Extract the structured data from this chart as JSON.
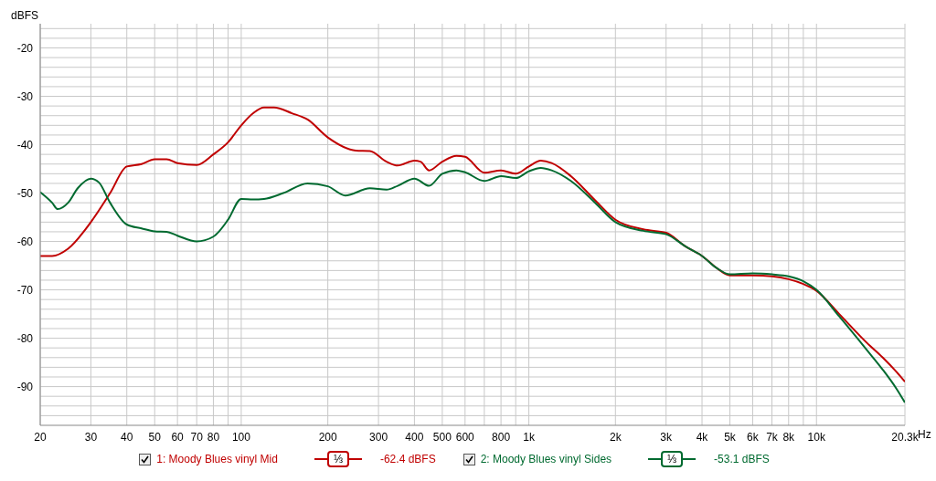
{
  "chart_data": {
    "type": "line",
    "ylabel": "dBFS",
    "log": "x",
    "grid": true,
    "legend": "bottom",
    "marker": "none",
    "line_style": "solid",
    "xlim": [
      20,
      20300
    ],
    "ylim": [
      -98,
      -15
    ],
    "xticks": [
      20,
      30,
      40,
      50,
      60,
      70,
      80,
      {
        "value": 90,
        "label": null
      },
      100,
      200,
      300,
      400,
      500,
      600,
      {
        "value": 700,
        "label": null
      },
      800,
      {
        "value": 900,
        "label": null
      },
      {
        "value": 1000,
        "label": "1k"
      },
      {
        "value": 2000,
        "label": "2k"
      },
      {
        "value": 3000,
        "label": "3k"
      },
      {
        "value": 4000,
        "label": "4k"
      },
      {
        "value": 5000,
        "label": "5k"
      },
      {
        "value": 6000,
        "label": "6k"
      },
      {
        "value": 7000,
        "label": "7k"
      },
      {
        "value": 8000,
        "label": "8k"
      },
      {
        "value": 9000,
        "label": null
      },
      {
        "value": 10000,
        "label": "10k"
      },
      {
        "value": 20300,
        "label": "20.3k"
      }
    ],
    "xlabel": "Hz",
    "yticks": [
      {
        "value": -16,
        "label": null
      },
      {
        "value": -18,
        "label": null
      },
      -20,
      {
        "value": -22,
        "label": null
      },
      {
        "value": -24,
        "label": null
      },
      {
        "value": -26,
        "label": null
      },
      {
        "value": -28,
        "label": null
      },
      -30,
      {
        "value": -32,
        "label": null
      },
      {
        "value": -34,
        "label": null
      },
      {
        "value": -36,
        "label": null
      },
      {
        "value": -38,
        "label": null
      },
      -40,
      {
        "value": -42,
        "label": null
      },
      {
        "value": -44,
        "label": null
      },
      {
        "value": -46,
        "label": null
      },
      {
        "value": -48,
        "label": null
      },
      -50,
      {
        "value": -52,
        "label": null
      },
      {
        "value": -54,
        "label": null
      },
      {
        "value": -56,
        "label": null
      },
      {
        "value": -58,
        "label": null
      },
      -60,
      {
        "value": -62,
        "label": null
      },
      {
        "value": -64,
        "label": null
      },
      {
        "value": -66,
        "label": null
      },
      {
        "value": -68,
        "label": null
      },
      -70,
      {
        "value": -72,
        "label": null
      },
      {
        "value": -74,
        "label": null
      },
      {
        "value": -76,
        "label": null
      },
      {
        "value": -78,
        "label": null
      },
      -80,
      {
        "value": -82,
        "label": null
      },
      {
        "value": -84,
        "label": null
      },
      {
        "value": -86,
        "label": null
      },
      {
        "value": -88,
        "label": null
      },
      -90,
      {
        "value": -92,
        "label": null
      },
      {
        "value": -94,
        "label": null
      },
      {
        "value": -96,
        "label": null
      }
    ],
    "annotations": [
      "⅓",
      "-62.4 dBFS",
      "⅓",
      "-53.1 dBFS"
    ],
    "series": [
      {
        "name": "1: Moody Blues vinyl Mid",
        "color": "#c00000",
        "x": [
          20,
          22,
          25,
          30,
          35,
          40,
          45,
          50,
          55,
          60,
          70,
          80,
          90,
          100,
          110,
          120,
          130,
          150,
          170,
          200,
          250,
          280,
          320,
          350,
          400,
          420,
          450,
          500,
          560,
          600,
          700,
          800,
          900,
          1000,
          1100,
          1200,
          1400,
          1700,
          2000,
          2500,
          3000,
          3500,
          4000,
          4500,
          5000,
          6000,
          7000,
          8000,
          9000,
          10000,
          12000,
          15000,
          17000,
          19000,
          20300
        ],
        "values": [
          -63,
          -63,
          -61.5,
          -56,
          -50,
          -44.5,
          -44,
          -43,
          -43,
          -43.8,
          -44.2,
          -42,
          -39.5,
          -36,
          -33.5,
          -32.3,
          -32.3,
          -33.5,
          -34.8,
          -38.5,
          -41.2,
          -41.3,
          -43.5,
          -44.3,
          -43.3,
          -43.5,
          -45.3,
          -43.5,
          -42.3,
          -42.5,
          -45.8,
          -45.3,
          -46,
          -44.5,
          -43.3,
          -43.8,
          -46.5,
          -51.5,
          -55.5,
          -57.5,
          -58.2,
          -61,
          -63,
          -65.5,
          -67,
          -67,
          -67.2,
          -67.8,
          -68.8,
          -70.2,
          -75,
          -81,
          -84,
          -87,
          -89
        ]
      },
      {
        "name": "2: Moody Blues vinyl Sides",
        "color": "#006a30",
        "x": [
          20,
          22,
          23,
          25,
          27,
          30,
          32,
          35,
          40,
          45,
          50,
          55,
          60,
          70,
          80,
          90,
          100,
          110,
          120,
          140,
          170,
          200,
          230,
          280,
          320,
          350,
          400,
          450,
          500,
          560,
          600,
          700,
          800,
          900,
          1000,
          1100,
          1200,
          1400,
          1700,
          2000,
          2500,
          3000,
          3500,
          4000,
          4500,
          5000,
          6000,
          7000,
          8000,
          9000,
          10000,
          12000,
          15000,
          17000,
          19000,
          20300
        ],
        "values": [
          -49.8,
          -52,
          -53.3,
          -52,
          -49,
          -47,
          -47.8,
          -52,
          -56.5,
          -57.3,
          -57.9,
          -58,
          -58.8,
          -60,
          -59,
          -55.5,
          -51.2,
          -51.3,
          -51.2,
          -50,
          -48,
          -48.6,
          -50.5,
          -49,
          -49.3,
          -48.5,
          -47,
          -48.5,
          -46,
          -45.3,
          -45.7,
          -47.5,
          -46.5,
          -46.9,
          -45.5,
          -44.8,
          -45.3,
          -47.5,
          -52,
          -56,
          -57.8,
          -58.5,
          -61,
          -63,
          -65.5,
          -66.8,
          -66.6,
          -66.8,
          -67.2,
          -68.2,
          -70,
          -75.5,
          -82.5,
          -86.5,
          -90.5,
          -93.3
        ]
      }
    ]
  }
}
